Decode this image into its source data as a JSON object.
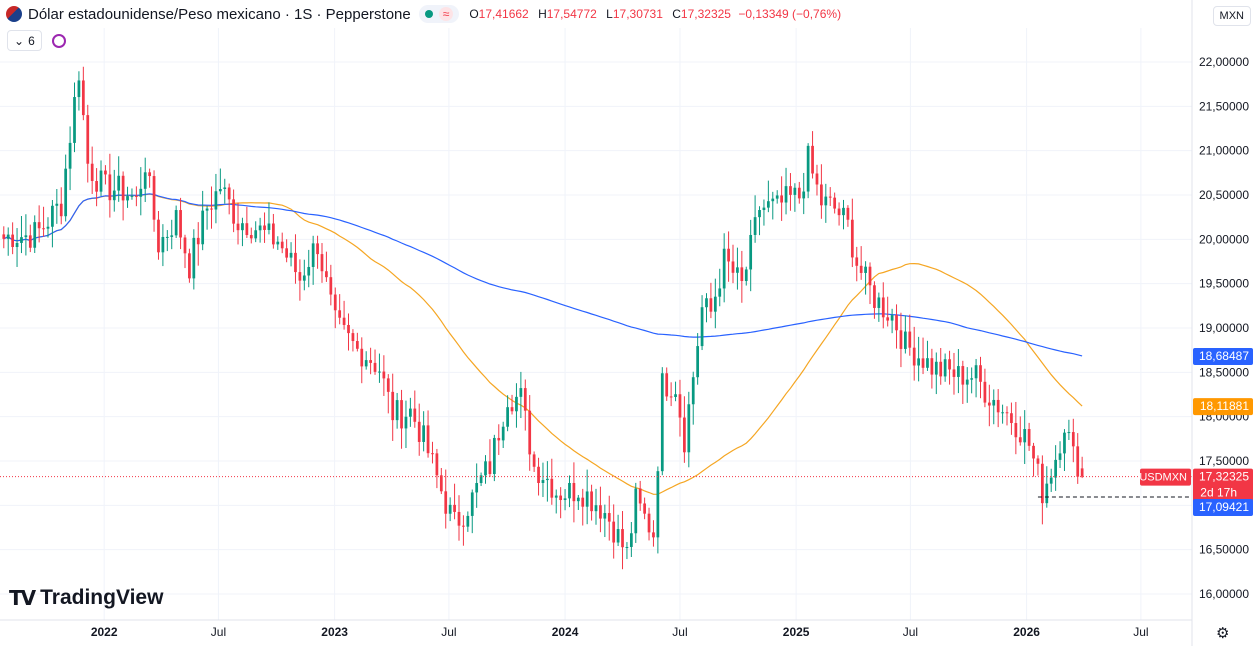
{
  "header": {
    "title": "Dólar estadounidense/Peso mexicano · 1S · Pepperstone",
    "ohlc": {
      "o_label": "O",
      "o": "17,41662",
      "h_label": "H",
      "h": "17,54772",
      "l_label": "L",
      "l": "17,30731",
      "c_label": "C",
      "c": "17,32325",
      "chg": "−0,13349 (−0,76%)"
    },
    "indicator_count": "6",
    "currency": "MXN",
    "wave_symbol": "≈",
    "chevron_symbol": "⌄",
    "gear_symbol": "⚙"
  },
  "logo": {
    "mark": "TV",
    "text": "TradingView"
  },
  "colors": {
    "up": "#089981",
    "down": "#f23645",
    "ma50": "#f5a623",
    "ma200": "#2962ff",
    "grid": "#f0f3fa",
    "text": "#131722",
    "last_price": "#f23645",
    "low_line": "#131722"
  },
  "chart_data": {
    "type": "candlestick",
    "symbol": "USDMXN",
    "y_ticks": [
      "22,00000",
      "21,50000",
      "21,00000",
      "20,50000",
      "20,00000",
      "19,50000",
      "19,00000",
      "18,50000",
      "18,00000",
      "17,50000",
      "17,00000",
      "16,50000",
      "16,00000"
    ],
    "y_tick_values": [
      22,
      21.5,
      21,
      20.5,
      20,
      19.5,
      19,
      18.5,
      18,
      17.5,
      17,
      16.5,
      16
    ],
    "x_labels": [
      "2022",
      "Jul",
      "2023",
      "Jul",
      "2024",
      "Jul",
      "2025",
      "Jul",
      "2026",
      "Jul"
    ],
    "x_label_dates": [
      "2022-01-01",
      "2022-07-01",
      "2023-01-01",
      "2023-07-01",
      "2024-01-01",
      "2024-07-01",
      "2025-01-01",
      "2025-07-01",
      "2026-01-01",
      "2026-07-01"
    ],
    "x_range": [
      "2021-07-20",
      "2026-09-20"
    ],
    "y_range": [
      15.85,
      22.45
    ],
    "anchors": [
      [
        "2021-07-26",
        19.95
      ],
      [
        "2021-09-20",
        20.15
      ],
      [
        "2021-10-25",
        20.35
      ],
      [
        "2021-11-22",
        21.9
      ],
      [
        "2021-12-06",
        20.9
      ],
      [
        "2022-01-03",
        20.6
      ],
      [
        "2022-02-21",
        20.4
      ],
      [
        "2022-03-07",
        20.9
      ],
      [
        "2022-03-28",
        20.0
      ],
      [
        "2022-04-25",
        20.2
      ],
      [
        "2022-05-16",
        19.65
      ],
      [
        "2022-06-13",
        20.4
      ],
      [
        "2022-07-04",
        20.65
      ],
      [
        "2022-08-01",
        20.15
      ],
      [
        "2022-09-05",
        20.1
      ],
      [
        "2022-10-03",
        20.05
      ],
      [
        "2022-11-07",
        19.5
      ],
      [
        "2022-12-05",
        19.95
      ],
      [
        "2023-01-02",
        19.1
      ],
      [
        "2023-02-06",
        18.7
      ],
      [
        "2023-03-13",
        18.55
      ],
      [
        "2023-04-03",
        18.1
      ],
      [
        "2023-05-01",
        18.05
      ],
      [
        "2023-06-12",
        17.3
      ],
      [
        "2023-07-10",
        16.85
      ],
      [
        "2023-08-07",
        17.05
      ],
      [
        "2023-09-04",
        17.4
      ],
      [
        "2023-10-02",
        18.3
      ],
      [
        "2023-10-23",
        18.25
      ],
      [
        "2023-11-13",
        17.4
      ],
      [
        "2023-12-18",
        17.15
      ],
      [
        "2024-01-22",
        17.25
      ],
      [
        "2024-02-12",
        17.05
      ],
      [
        "2024-03-11",
        16.8
      ],
      [
        "2024-04-08",
        16.5
      ],
      [
        "2024-04-22",
        17.1
      ],
      [
        "2024-05-20",
        16.65
      ],
      [
        "2024-06-03",
        18.3
      ],
      [
        "2024-06-24",
        18.35
      ],
      [
        "2024-07-08",
        17.8
      ],
      [
        "2024-08-05",
        19.25
      ],
      [
        "2024-08-19",
        19.15
      ],
      [
        "2024-09-09",
        19.7
      ],
      [
        "2024-10-07",
        19.5
      ],
      [
        "2024-11-04",
        20.4
      ],
      [
        "2024-12-02",
        20.3
      ],
      [
        "2025-01-06",
        20.5
      ],
      [
        "2025-01-20",
        20.95
      ],
      [
        "2025-02-10",
        20.45
      ],
      [
        "2025-03-03",
        20.3
      ],
      [
        "2025-03-24",
        20.1
      ],
      [
        "2025-04-07",
        19.75
      ],
      [
        "2025-05-05",
        19.4
      ],
      [
        "2025-06-02",
        19.1
      ],
      [
        "2025-06-23",
        18.75
      ],
      [
        "2025-07-21",
        18.7
      ],
      [
        "2025-08-18",
        18.55
      ],
      [
        "2025-09-15",
        18.4
      ],
      [
        "2025-10-13",
        18.45
      ],
      [
        "2025-11-10",
        18.25
      ],
      [
        "2025-12-08",
        17.95
      ],
      [
        "2026-01-05",
        17.65
      ],
      [
        "2026-01-26",
        17.2
      ],
      [
        "2026-02-16",
        17.6
      ],
      [
        "2026-03-02",
        17.95
      ],
      [
        "2026-03-16",
        17.5
      ],
      [
        "2026-03-30",
        17.35
      ]
    ],
    "last": {
      "open": 17.41662,
      "high": 17.54772,
      "low": 17.30731,
      "close": 17.32325
    },
    "ma200_end": 18.68487,
    "ma50_end": 18.11881,
    "low_marker": 17.09421,
    "low_marker_start": "2026-01-19",
    "labels": {
      "ma200": "18,68487",
      "ma50": "18,11881",
      "symbol_tag": "USDMXN",
      "last_price": "17,32325",
      "countdown": "2d 17h",
      "low": "17,09421"
    },
    "series": [
      {
        "type": "candlestick",
        "name": "USDMXN"
      },
      {
        "type": "line",
        "color": "#f5a623"
      },
      {
        "type": "line",
        "color": "#2962ff"
      }
    ]
  }
}
